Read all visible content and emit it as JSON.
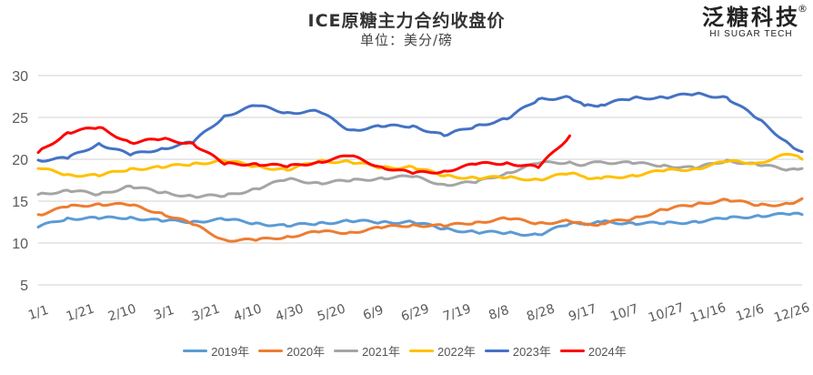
{
  "chart_data": {
    "type": "line",
    "title": "ICE原糖主力合约收盘价",
    "subtitle": "单位：美分/磅",
    "xlabel": "",
    "ylabel": "",
    "ylim": [
      5,
      30
    ],
    "yticks": [
      "5",
      "10",
      "15",
      "20",
      "25",
      "30"
    ],
    "xticks": [
      "1/1",
      "1/21",
      "2/10",
      "3/1",
      "3/21",
      "4/10",
      "4/30",
      "5/20",
      "6/9",
      "6/29",
      "7/19",
      "8/8",
      "8/28",
      "9/17",
      "10/7",
      "10/27",
      "11/16",
      "12/6",
      "12/26"
    ],
    "grid": true,
    "legend": "bottom",
    "x_days": [
      1,
      15,
      30,
      45,
      60,
      75,
      90,
      105,
      120,
      135,
      150,
      165,
      180,
      195,
      210,
      225,
      240,
      255,
      262,
      270,
      285,
      300,
      315,
      330,
      345,
      360,
      366
    ],
    "series": [
      {
        "name": "2019年",
        "color": "#5B9BD5",
        "values": [
          11.9,
          13.0,
          12.9,
          13.1,
          12.6,
          12.6,
          12.8,
          12.4,
          12.0,
          12.4,
          12.6,
          12.5,
          12.5,
          11.7,
          11.3,
          11.2,
          11.0,
          12.3,
          12.3,
          12.5,
          12.4,
          12.3,
          12.6,
          12.9,
          13.3,
          13.4,
          13.4
        ]
      },
      {
        "name": "2020年",
        "color": "#ED7D31",
        "values": [
          13.4,
          14.3,
          14.7,
          14.5,
          13.6,
          12.2,
          10.4,
          10.3,
          10.8,
          11.3,
          11.3,
          11.8,
          12.2,
          12.0,
          12.5,
          12.9,
          12.4,
          12.6,
          12.2,
          12.3,
          12.9,
          14.0,
          14.6,
          15.2,
          14.5,
          14.7,
          15.3
        ]
      },
      {
        "name": "2021年",
        "color": "#A5A5A5",
        "values": [
          15.8,
          16.3,
          15.8,
          16.8,
          16.0,
          15.6,
          15.6,
          16.5,
          17.6,
          17.2,
          17.4,
          17.8,
          17.9,
          17.0,
          17.2,
          18.4,
          19.5,
          19.7,
          19.3,
          19.7,
          19.5,
          19.3,
          18.9,
          19.9,
          19.3,
          18.8,
          18.9
        ]
      },
      {
        "name": "2022年",
        "color": "#FFC000",
        "values": [
          18.9,
          18.2,
          18.0,
          18.9,
          19.0,
          19.5,
          19.8,
          19.2,
          18.7,
          19.8,
          19.7,
          19.0,
          19.1,
          18.0,
          17.8,
          17.8,
          17.6,
          18.3,
          17.9,
          17.7,
          18.1,
          18.6,
          18.9,
          19.7,
          19.6,
          20.6,
          20.0
        ]
      },
      {
        "name": "2023年",
        "color": "#4472C4",
        "values": [
          19.9,
          20.1,
          21.9,
          20.5,
          21.3,
          22.0,
          25.2,
          26.4,
          25.6,
          25.7,
          23.5,
          23.9,
          24.0,
          22.8,
          24.0,
          24.8,
          27.2,
          27.4,
          26.4,
          26.5,
          27.3,
          27.4,
          27.8,
          27.4,
          24.8,
          21.8,
          20.9
        ]
      },
      {
        "name": "2024年",
        "color": "#FF0000",
        "values": [
          20.8,
          23.2,
          23.8,
          22.0,
          22.4,
          21.9,
          19.4,
          19.5,
          19.1,
          19.7,
          20.4,
          19.1,
          18.3,
          18.6,
          19.4,
          19.6,
          19.0,
          22.8,
          null,
          null,
          null,
          null,
          null,
          null,
          null,
          null,
          null
        ]
      }
    ]
  },
  "logo": {
    "cn": "泛糖科技",
    "en": "HI SUGAR TECH",
    "mark": "®"
  }
}
